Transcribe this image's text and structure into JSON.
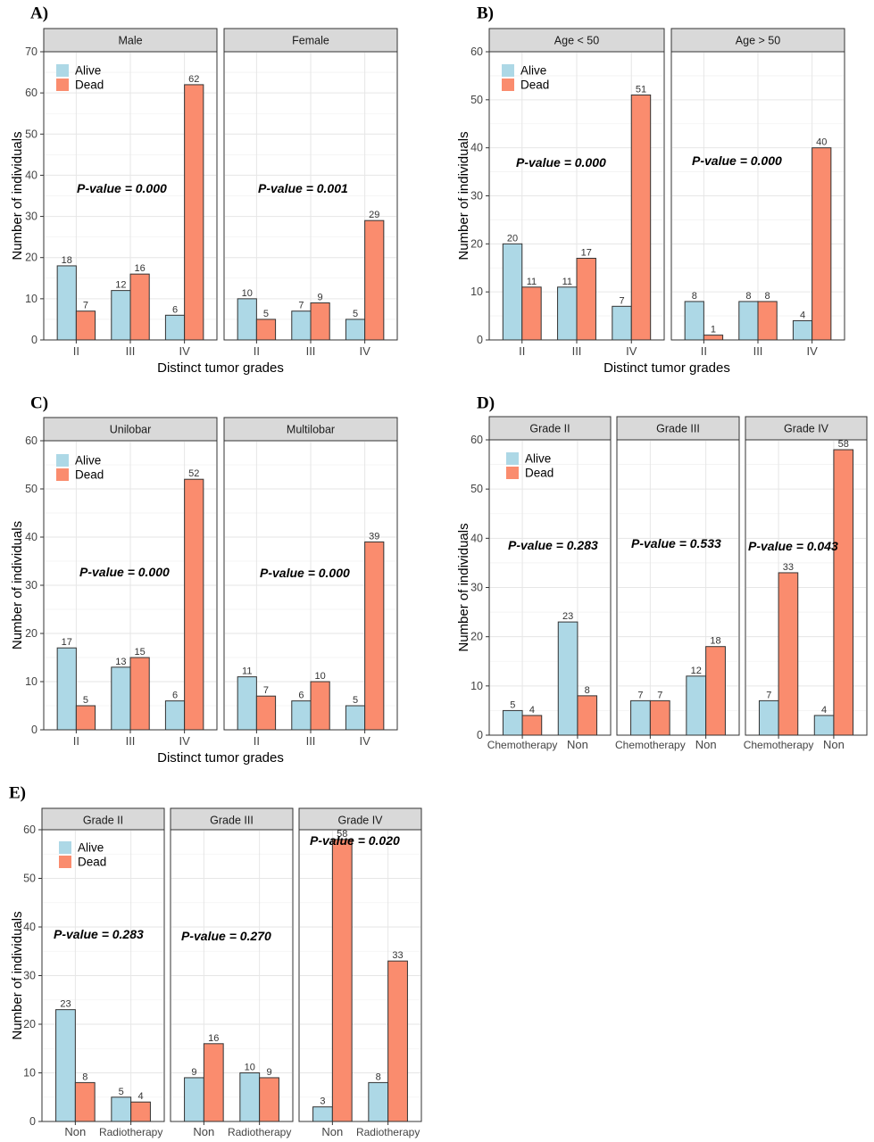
{
  "colors": {
    "alive": "#add8e6",
    "dead": "#fa8c6e"
  },
  "chart_data": [
    {
      "panel": "A)",
      "type": "bar",
      "ylabel": "Number of individuals",
      "xlabel": "Distinct tumor grades",
      "ylim": [
        0,
        70
      ],
      "yticks": [
        0,
        10,
        20,
        30,
        40,
        50,
        60,
        70
      ],
      "legend": [
        "Alive",
        "Dead"
      ],
      "legend_position": "top-left",
      "facets": [
        {
          "strip": "Male",
          "categories": [
            "II",
            "III",
            "IV"
          ],
          "series": [
            {
              "name": "Alive",
              "values": [
                18,
                12,
                6
              ]
            },
            {
              "name": "Dead",
              "values": [
                7,
                16,
                62
              ]
            }
          ],
          "pvalue": "P-value = 0.000"
        },
        {
          "strip": "Female",
          "categories": [
            "II",
            "III",
            "IV"
          ],
          "series": [
            {
              "name": "Alive",
              "values": [
                10,
                7,
                5
              ]
            },
            {
              "name": "Dead",
              "values": [
                5,
                9,
                29
              ]
            }
          ],
          "pvalue": "P-value = 0.001"
        }
      ]
    },
    {
      "panel": "B)",
      "type": "bar",
      "ylabel": "Number of individuals",
      "xlabel": "Distinct tumor grades",
      "ylim": [
        0,
        60
      ],
      "yticks": [
        0,
        10,
        20,
        30,
        40,
        50,
        60
      ],
      "legend": [
        "Alive",
        "Dead"
      ],
      "legend_position": "top-left",
      "facets": [
        {
          "strip": "Age < 50",
          "categories": [
            "II",
            "III",
            "IV"
          ],
          "series": [
            {
              "name": "Alive",
              "values": [
                20,
                11,
                7
              ]
            },
            {
              "name": "Dead",
              "values": [
                11,
                17,
                51
              ]
            }
          ],
          "pvalue": "P-value = 0.000"
        },
        {
          "strip": "Age > 50",
          "categories": [
            "II",
            "III",
            "IV"
          ],
          "series": [
            {
              "name": "Alive",
              "values": [
                8,
                8,
                4
              ]
            },
            {
              "name": "Dead",
              "values": [
                1,
                8,
                40
              ]
            }
          ],
          "pvalue": "P-value = 0.000"
        }
      ]
    },
    {
      "panel": "C)",
      "type": "bar",
      "ylabel": "Number of individuals",
      "xlabel": "Distinct tumor grades",
      "ylim": [
        0,
        60
      ],
      "yticks": [
        0,
        10,
        20,
        30,
        40,
        50,
        60
      ],
      "legend": [
        "Alive",
        "Dead"
      ],
      "legend_position": "top-left",
      "facets": [
        {
          "strip": "Unilobar",
          "categories": [
            "II",
            "III",
            "IV"
          ],
          "series": [
            {
              "name": "Alive",
              "values": [
                17,
                13,
                6
              ]
            },
            {
              "name": "Dead",
              "values": [
                5,
                15,
                52
              ]
            }
          ],
          "pvalue": "P-value = 0.000"
        },
        {
          "strip": "Multilobar",
          "categories": [
            "II",
            "III",
            "IV"
          ],
          "series": [
            {
              "name": "Alive",
              "values": [
                11,
                6,
                5
              ]
            },
            {
              "name": "Dead",
              "values": [
                7,
                10,
                39
              ]
            }
          ],
          "pvalue": "P-value = 0.000"
        }
      ]
    },
    {
      "panel": "D)",
      "type": "bar",
      "ylabel": "Number of individuals",
      "xlabel": "",
      "ylim": [
        0,
        60
      ],
      "yticks": [
        0,
        10,
        20,
        30,
        40,
        50,
        60
      ],
      "legend": [
        "Alive",
        "Dead"
      ],
      "legend_position": "top-left",
      "facets": [
        {
          "strip": "Grade  II",
          "categories": [
            "Chemotherapy",
            "Non"
          ],
          "series": [
            {
              "name": "Alive",
              "values": [
                5,
                23
              ]
            },
            {
              "name": "Dead",
              "values": [
                4,
                8
              ]
            }
          ],
          "pvalue": "P-value = 0.283"
        },
        {
          "strip": "Grade  III",
          "categories": [
            "Chemotherapy",
            "Non"
          ],
          "series": [
            {
              "name": "Alive",
              "values": [
                7,
                12
              ]
            },
            {
              "name": "Dead",
              "values": [
                7,
                18
              ]
            }
          ],
          "pvalue": "P-value = 0.533"
        },
        {
          "strip": "Grade  IV",
          "categories": [
            "Chemotherapy",
            "Non"
          ],
          "series": [
            {
              "name": "Alive",
              "values": [
                7,
                4
              ]
            },
            {
              "name": "Dead",
              "values": [
                33,
                58
              ]
            }
          ],
          "pvalue": "P-value = 0.043"
        }
      ]
    },
    {
      "panel": "E)",
      "type": "bar",
      "ylabel": "Number of individuals",
      "xlabel": "",
      "ylim": [
        0,
        60
      ],
      "yticks": [
        0,
        10,
        20,
        30,
        40,
        50,
        60
      ],
      "legend": [
        "Alive",
        "Dead"
      ],
      "legend_position": "top-left",
      "facets": [
        {
          "strip": "Grade  II",
          "categories": [
            "Non",
            "Radiotherapy"
          ],
          "series": [
            {
              "name": "Alive",
              "values": [
                23,
                5
              ]
            },
            {
              "name": "Dead",
              "values": [
                8,
                4
              ]
            }
          ],
          "pvalue": "P-value = 0.283"
        },
        {
          "strip": "Grade  III",
          "categories": [
            "Non",
            "Radiotherapy"
          ],
          "series": [
            {
              "name": "Alive",
              "values": [
                9,
                10
              ]
            },
            {
              "name": "Dead",
              "values": [
                16,
                9
              ]
            }
          ],
          "pvalue": "P-value = 0.270"
        },
        {
          "strip": "Grade  IV",
          "categories": [
            "Non",
            "Radiotherapy"
          ],
          "series": [
            {
              "name": "Alive",
              "values": [
                3,
                8
              ]
            },
            {
              "name": "Dead",
              "values": [
                58,
                33
              ]
            }
          ],
          "pvalue": "P-value = 0.020"
        }
      ]
    }
  ]
}
